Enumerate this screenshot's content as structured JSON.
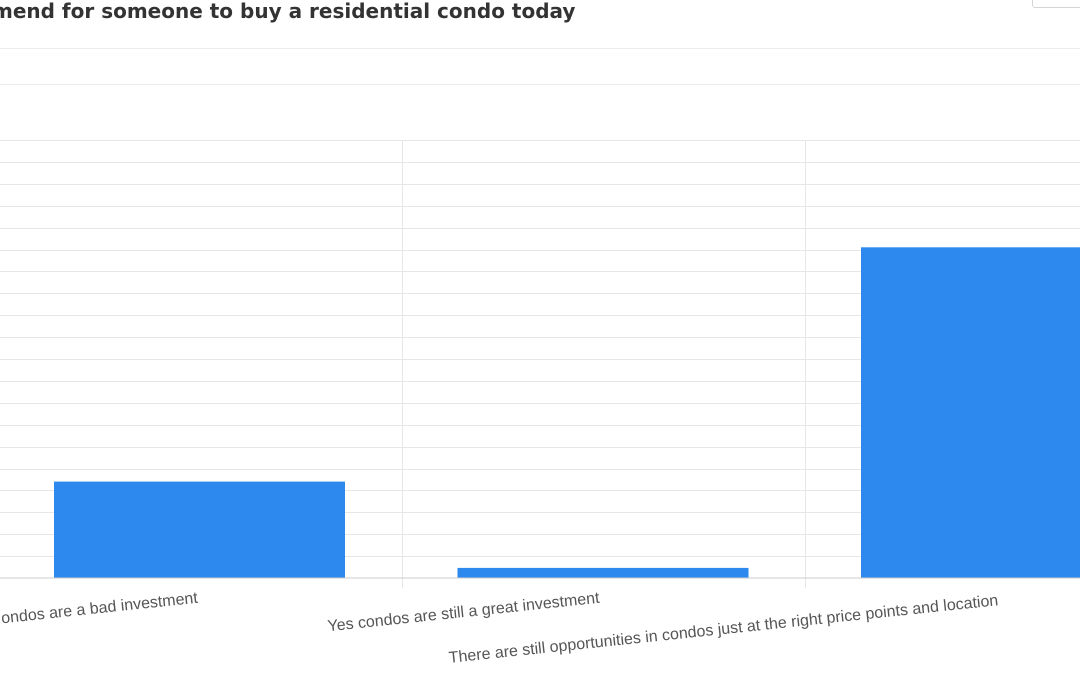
{
  "chart_data": {
    "type": "bar",
    "title": "mend for someone to buy a residential condo today",
    "categories": [
      "ondos are a bad investment",
      "Yes condos are still a great investment",
      "There are still opportunities in condos just at the right price points and location"
    ],
    "values": [
      22,
      2.3,
      75.5
    ],
    "ylim": [
      0,
      100
    ],
    "grid": true,
    "legend": "none",
    "bar_color": "#2e89ef",
    "grid_color": "#e6e6e6"
  }
}
